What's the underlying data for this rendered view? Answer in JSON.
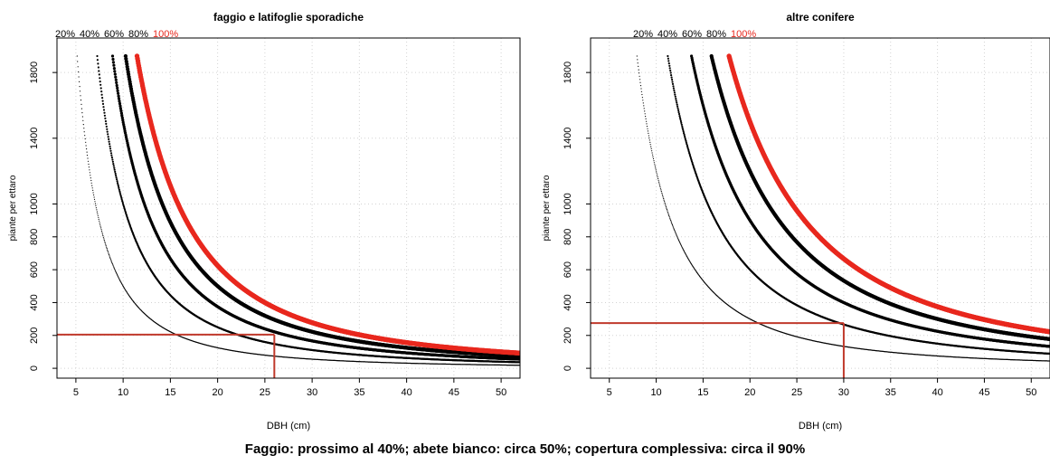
{
  "caption": "Faggio: prossimo al 40%; abete bianco: circa 50%; copertura complessiva: circa il 90%",
  "colors": {
    "highlight": "#e8281e",
    "reference_line": "#c0392b",
    "curve": "#000000"
  },
  "chart_data": [
    {
      "type": "scatter",
      "title": "faggio e latifoglie sporadiche",
      "xlabel": "DBH (cm)",
      "ylabel": "piante per ettaro",
      "xlim": [
        3,
        52
      ],
      "ylim": [
        -60,
        2010
      ],
      "xticks": [
        5,
        10,
        15,
        20,
        25,
        30,
        35,
        40,
        45,
        50
      ],
      "yticks": [
        0,
        200,
        400,
        600,
        800,
        1000,
        1400,
        1800
      ],
      "grid": true,
      "legend_labels": [
        "20%",
        "40%",
        "60%",
        "80%",
        "100%"
      ],
      "series": [
        {
          "name": "20%",
          "coefficient": 50000
        },
        {
          "name": "40%",
          "coefficient": 100000
        },
        {
          "name": "60%",
          "coefficient": 150000
        },
        {
          "name": "80%",
          "coefficient": 200000
        },
        {
          "name": "100%",
          "coefficient": 250000
        }
      ],
      "reference": {
        "x": 26,
        "y": 205
      }
    },
    {
      "type": "scatter",
      "title": "altre conifere",
      "xlabel": "DBH (cm)",
      "ylabel": "piante per ettaro",
      "xlim": [
        3,
        52
      ],
      "ylim": [
        -60,
        2010
      ],
      "xticks": [
        5,
        10,
        15,
        20,
        25,
        30,
        35,
        40,
        45,
        50
      ],
      "yticks": [
        0,
        200,
        400,
        600,
        800,
        1000,
        1400,
        1800
      ],
      "grid": true,
      "legend_labels": [
        "20%",
        "40%",
        "60%",
        "80%",
        "100%"
      ],
      "series": [
        {
          "name": "20%",
          "coefficient": 120000
        },
        {
          "name": "40%",
          "coefficient": 240000
        },
        {
          "name": "60%",
          "coefficient": 360000
        },
        {
          "name": "80%",
          "coefficient": 480000
        },
        {
          "name": "100%",
          "coefficient": 600000
        }
      ],
      "reference": {
        "x": 30,
        "y": 275
      }
    }
  ]
}
